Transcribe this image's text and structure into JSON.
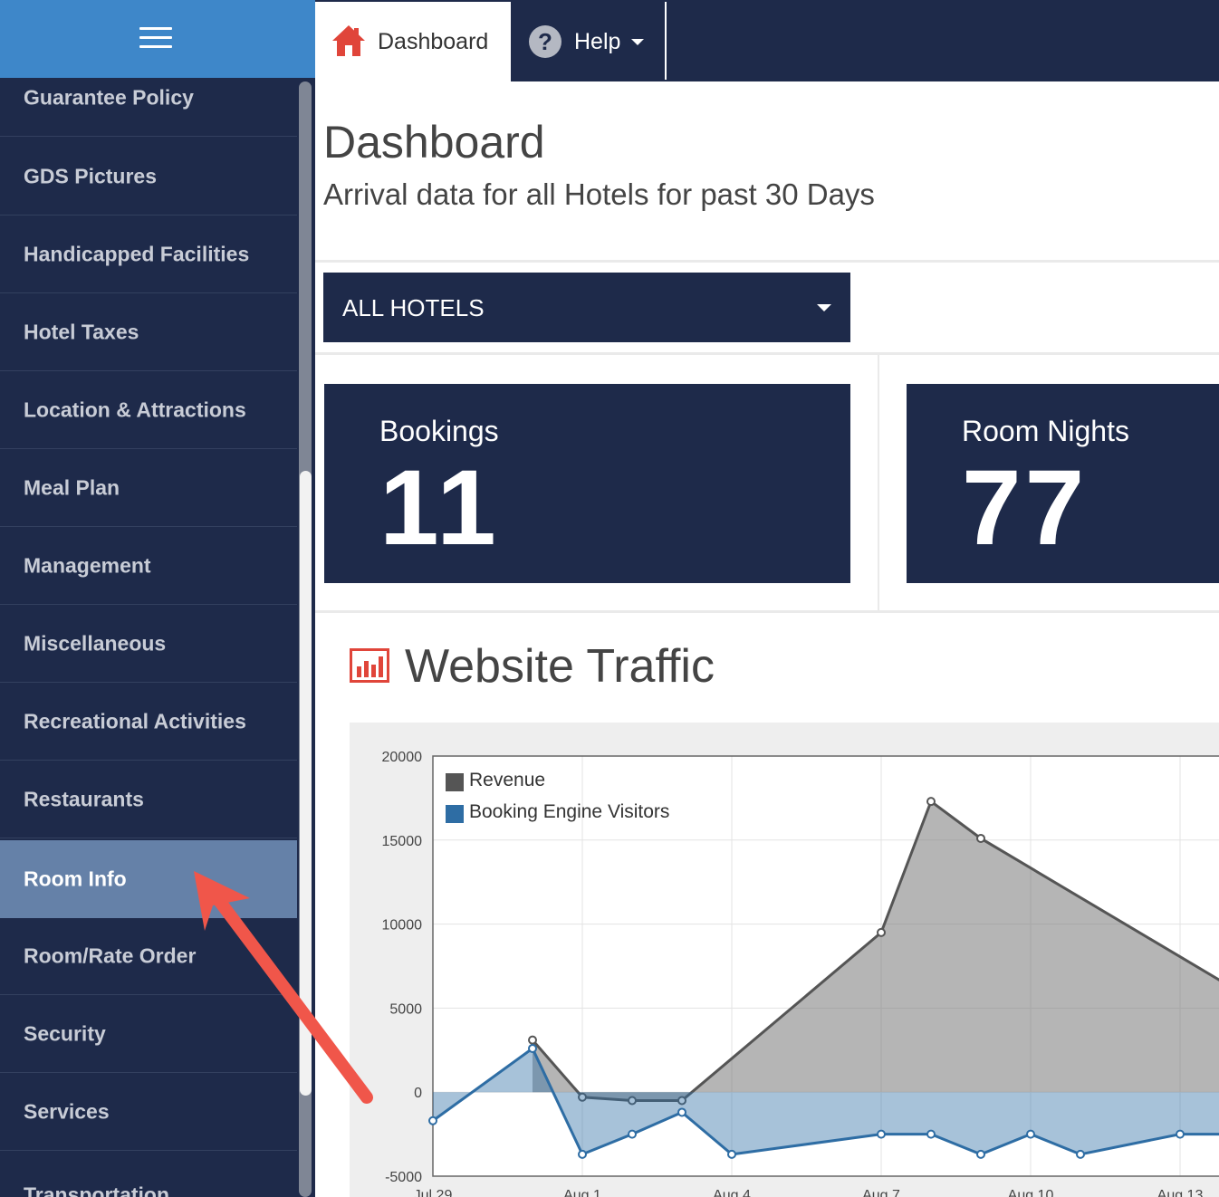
{
  "sidebar": {
    "menu_icon": "hamburger-icon",
    "items": [
      {
        "label": "Guarantee Policy",
        "active": false
      },
      {
        "label": "GDS Pictures",
        "active": false
      },
      {
        "label": "Handicapped Facilities",
        "active": false
      },
      {
        "label": "Hotel Taxes",
        "active": false
      },
      {
        "label": "Location & Attractions",
        "active": false
      },
      {
        "label": "Meal Plan",
        "active": false
      },
      {
        "label": "Management",
        "active": false
      },
      {
        "label": "Miscellaneous",
        "active": false
      },
      {
        "label": "Recreational Activities",
        "active": false
      },
      {
        "label": "Restaurants",
        "active": false
      },
      {
        "label": "Room Info",
        "active": true
      },
      {
        "label": "Room/Rate Order",
        "active": false
      },
      {
        "label": "Security",
        "active": false
      },
      {
        "label": "Services",
        "active": false
      },
      {
        "label": "Transportation",
        "active": false
      }
    ]
  },
  "topnav": {
    "dashboard_label": "Dashboard",
    "dashboard_icon": "home-icon",
    "help_label": "Help",
    "help_icon": "question-circle-icon",
    "help_caret_icon": "caret-down-icon"
  },
  "header": {
    "title": "Dashboard",
    "subtitle": "Arrival data for all Hotels for past 30 Days"
  },
  "hotel_select": {
    "value": "ALL HOTELS"
  },
  "stats": {
    "bookings": {
      "label": "Bookings",
      "value": "11"
    },
    "room_nights": {
      "label": "Room Nights",
      "value": "77"
    }
  },
  "traffic": {
    "title": "Website Traffic",
    "icon": "bar-chart-icon"
  },
  "colors": {
    "navy": "#1e2a4a",
    "sidebar_active": "#6581a8",
    "topbar_blue": "#3e87c9",
    "accent_red": "#e0453a",
    "revenue": "#555555",
    "visitors": "#2e6da4"
  },
  "chart_data": {
    "type": "area",
    "title": "",
    "xlabel": "",
    "ylabel": "",
    "ylim": [
      -5000,
      20000
    ],
    "yticks": [
      "20000",
      "15000",
      "10000",
      "5000",
      "0",
      "-5000"
    ],
    "xticks": [
      "Jul 29",
      "Aug 1",
      "Aug 4",
      "Aug 7",
      "Aug 10",
      "Aug 13"
    ],
    "x": [
      "Jul 29",
      "Jul 31",
      "Aug 1",
      "Aug 2",
      "Aug 3",
      "Aug 4",
      "Aug 7",
      "Aug 8",
      "Aug 9",
      "Aug 10",
      "Aug 11",
      "Aug 13",
      "Aug 14"
    ],
    "legend_position": "top-left",
    "grid": true,
    "series": [
      {
        "name": "Revenue",
        "color": "#555555",
        "values": [
          null,
          3100,
          -300,
          -500,
          -500,
          null,
          9500,
          17300,
          15100,
          null,
          null,
          null,
          6300
        ]
      },
      {
        "name": "Booking Engine Visitors",
        "color": "#2e6da4",
        "values": [
          -1700,
          2600,
          -3700,
          -2500,
          -1200,
          -3700,
          -2500,
          -2500,
          -3700,
          -2500,
          -3700,
          -2500,
          -2500
        ]
      }
    ]
  }
}
